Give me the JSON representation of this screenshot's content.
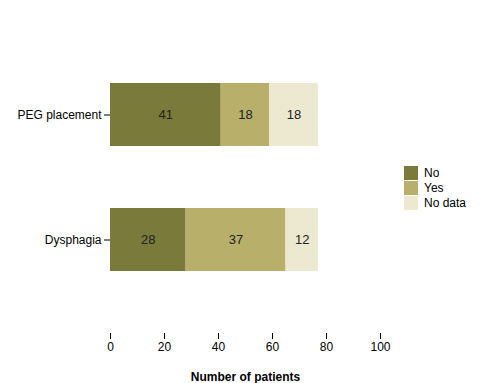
{
  "chart_data": {
    "type": "bar",
    "orientation": "horizontal",
    "stacked": true,
    "categories": [
      "Dysphagia",
      "PEG placement"
    ],
    "series": [
      {
        "name": "No",
        "color": "#7a7a3a",
        "values": [
          28,
          41
        ]
      },
      {
        "name": "Yes",
        "color": "#b8b06a",
        "values": [
          37,
          18
        ]
      },
      {
        "name": "No data",
        "color": "#ede8d0",
        "values": [
          12,
          18
        ]
      }
    ],
    "xlabel": "Number of patients",
    "xlim": [
      0,
      100
    ],
    "xticks": [
      0,
      20,
      40,
      60,
      80,
      100
    ],
    "data_labels": true,
    "legend": "right"
  }
}
